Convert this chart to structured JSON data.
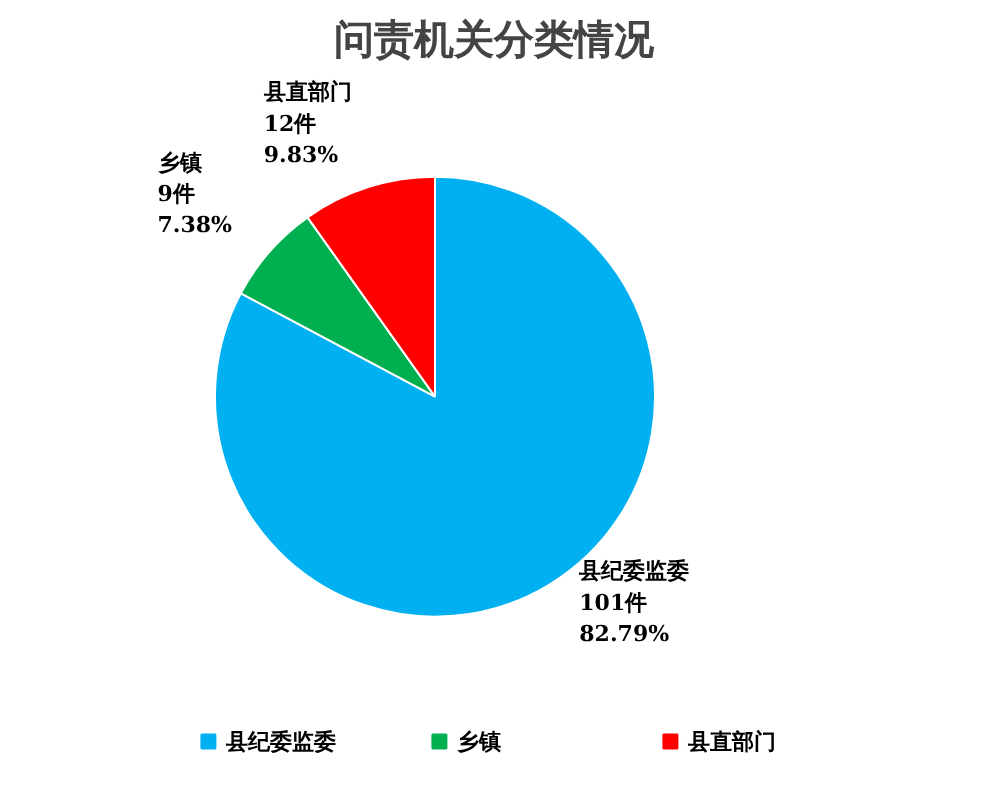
{
  "chart_data": {
    "type": "pie",
    "title": "问责机关分类情况",
    "categories": [
      "县纪委监委",
      "乡镇",
      "县直部门"
    ],
    "values": [
      101,
      9,
      12
    ],
    "colors": [
      "#00b0f0",
      "#00b050",
      "#ff0000"
    ],
    "value_labels": [
      "101件\n82.79%",
      "9件\n7.38%",
      "12件\n9.83%"
    ],
    "legend": "bottom"
  }
}
